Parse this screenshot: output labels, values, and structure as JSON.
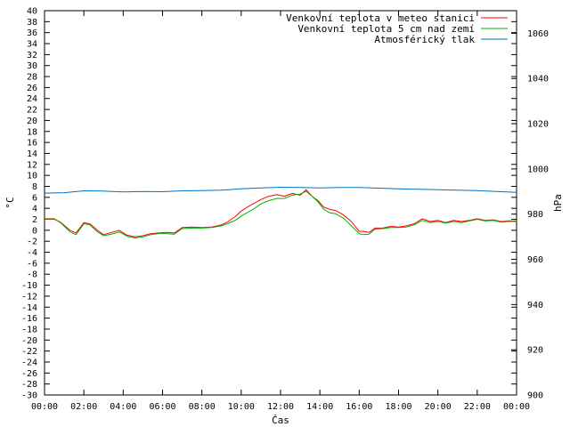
{
  "chart_data": {
    "type": "line",
    "title": "",
    "xlabel": "Čas",
    "ylabel": "°C",
    "y2label": "hPa",
    "xlim": [
      0,
      24
    ],
    "ylim": [
      -30,
      40
    ],
    "y2lim": [
      900,
      1070
    ],
    "x_ticks": [
      "00:00",
      "02:00",
      "04:00",
      "06:00",
      "08:00",
      "10:00",
      "12:00",
      "14:00",
      "16:00",
      "18:00",
      "20:00",
      "22:00",
      "00:00"
    ],
    "y_tick_step": 2,
    "y2_ticks": [
      900,
      920,
      940,
      960,
      980,
      1000,
      1020,
      1040,
      1060
    ],
    "legend_position": "top-right",
    "grid": false,
    "series": [
      {
        "name": "Venkovní teplota v meteo stanici",
        "axis": "y",
        "color": "#ff0000",
        "x": [
          0,
          0.5,
          0.8,
          1.3,
          1.6,
          2,
          2.3,
          2.7,
          3,
          3.5,
          3.8,
          4.2,
          4.6,
          5,
          5.4,
          5.8,
          6.2,
          6.6,
          7,
          7.5,
          8,
          8.5,
          9,
          9.3,
          9.7,
          10,
          10.3,
          10.6,
          11,
          11.4,
          11.8,
          12.2,
          12.6,
          13,
          13.3,
          13.6,
          13.9,
          14.2,
          14.5,
          14.8,
          15.2,
          15.6,
          16,
          16.2,
          16.5,
          16.8,
          17.2,
          17.6,
          18,
          18.4,
          18.8,
          19.2,
          19.6,
          20,
          20.4,
          20.8,
          21.2,
          21.6,
          22,
          22.4,
          22.8,
          23.2,
          23.6,
          24
        ],
        "values": [
          2,
          2,
          1.5,
          0,
          -0.5,
          1.4,
          1.2,
          0,
          -0.8,
          -0.3,
          0,
          -0.9,
          -1.2,
          -1,
          -0.6,
          -0.5,
          -0.4,
          -0.5,
          0.5,
          0.6,
          0.5,
          0.6,
          1,
          1.5,
          2.5,
          3.5,
          4.2,
          4.8,
          5.6,
          6.2,
          6.5,
          6.2,
          6.7,
          6.4,
          7.4,
          6.2,
          5.4,
          4.2,
          3.8,
          3.6,
          2.8,
          1.6,
          -0.2,
          -0.2,
          -0.4,
          0.4,
          0.4,
          0.7,
          0.6,
          0.8,
          1.2,
          2.1,
          1.6,
          1.8,
          1.4,
          1.8,
          1.6,
          1.8,
          2.1,
          1.8,
          1.9,
          1.6,
          1.7,
          1.7
        ]
      },
      {
        "name": "Venkovní teplota 5 cm nad zemí",
        "axis": "y",
        "color": "#00b000",
        "x": [
          0,
          0.5,
          0.8,
          1.3,
          1.6,
          2,
          2.3,
          2.7,
          3,
          3.5,
          3.8,
          4.2,
          4.6,
          5,
          5.4,
          5.8,
          6.2,
          6.6,
          7,
          7.5,
          8,
          8.5,
          9,
          9.3,
          9.7,
          10,
          10.3,
          10.6,
          11,
          11.4,
          11.8,
          12.2,
          12.6,
          13,
          13.3,
          13.6,
          13.9,
          14.2,
          14.5,
          14.8,
          15.2,
          15.6,
          16,
          16.2,
          16.5,
          16.8,
          17.2,
          17.6,
          18,
          18.4,
          18.8,
          19.2,
          19.6,
          20,
          20.4,
          20.8,
          21.2,
          21.6,
          22,
          22.4,
          22.8,
          23.2,
          23.6,
          24
        ],
        "values": [
          2.1,
          2.1,
          1.4,
          -0.3,
          -0.8,
          1.2,
          1,
          -0.3,
          -1,
          -0.6,
          -0.3,
          -1.1,
          -1.4,
          -1.2,
          -0.8,
          -0.6,
          -0.6,
          -0.7,
          0.3,
          0.4,
          0.4,
          0.5,
          0.8,
          1.2,
          1.8,
          2.6,
          3.2,
          3.8,
          4.8,
          5.4,
          5.8,
          5.8,
          6.4,
          6.6,
          7.1,
          6.2,
          5.2,
          3.8,
          3.2,
          3,
          2.2,
          0.8,
          -0.6,
          -0.8,
          -0.7,
          0.2,
          0.3,
          0.5,
          0.5,
          0.6,
          1,
          1.8,
          1.4,
          1.6,
          1.3,
          1.6,
          1.4,
          1.7,
          2,
          1.7,
          1.8,
          1.5,
          1.6,
          1.6
        ]
      },
      {
        "name": "Atmosférický tlak",
        "axis": "y2",
        "color": "#0070c0",
        "x": [
          0,
          1,
          2,
          3,
          4,
          5,
          6,
          7,
          8,
          9,
          10,
          11,
          12,
          13,
          14,
          15,
          16,
          17,
          18,
          19,
          20,
          21,
          22,
          23,
          24
        ],
        "values": [
          989.3,
          989.5,
          990.3,
          990.2,
          989.8,
          990,
          989.9,
          990.3,
          990.4,
          990.6,
          991.2,
          991.6,
          991.9,
          991.8,
          991.6,
          991.8,
          991.8,
          991.5,
          991.2,
          991,
          990.8,
          990.6,
          990.4,
          990,
          989.6
        ]
      }
    ]
  }
}
